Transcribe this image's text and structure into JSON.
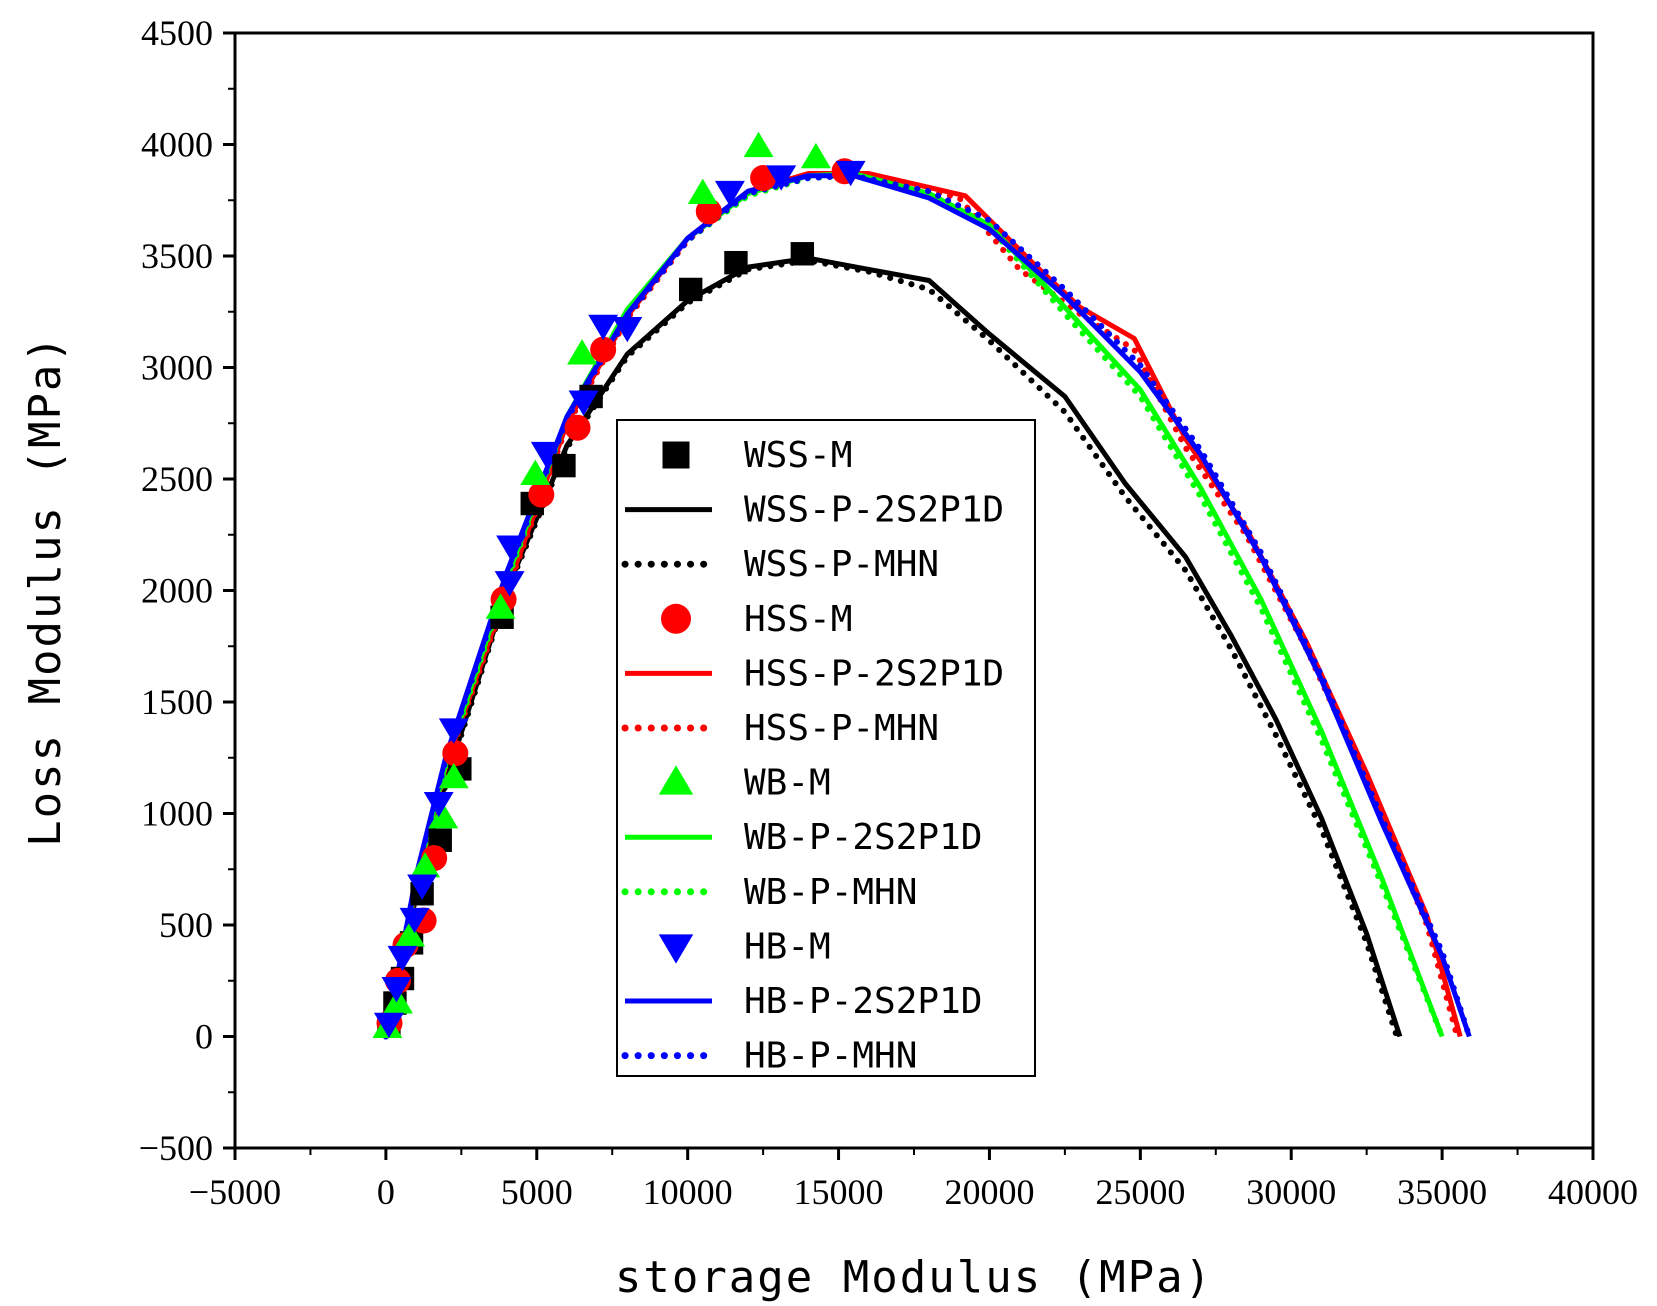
{
  "chart_data": {
    "type": "scatter",
    "title": "",
    "xlabel": "storage Modulus (MPa)",
    "ylabel": "Loss Modulus (MPa)",
    "xlim": [
      -5000,
      40000
    ],
    "ylim": [
      -500,
      4500
    ],
    "xticks": [
      -5000,
      0,
      5000,
      10000,
      15000,
      20000,
      25000,
      30000,
      35000,
      40000
    ],
    "xtick_labels": [
      "−5000",
      "0",
      "5000",
      "10000",
      "15000",
      "20000",
      "25000",
      "30000",
      "35000",
      "40000"
    ],
    "yticks": [
      -500,
      0,
      500,
      1000,
      1500,
      2000,
      2500,
      3000,
      3500,
      4000,
      4500
    ],
    "ytick_labels": [
      "−500",
      "0",
      "500",
      "1000",
      "1500",
      "2000",
      "2500",
      "3000",
      "3500",
      "4000",
      "4500"
    ],
    "grid": false,
    "legend_position": "center",
    "series": [
      {
        "name": "WSS-M",
        "kind": "marker",
        "marker": "square",
        "color": "#000000",
        "points": [
          [
            100,
            50
          ],
          [
            300,
            150
          ],
          [
            550,
            260
          ],
          [
            850,
            420
          ],
          [
            1200,
            640
          ],
          [
            1800,
            880
          ],
          [
            2450,
            1200
          ],
          [
            3850,
            1880
          ],
          [
            4850,
            2390
          ],
          [
            5900,
            2560
          ],
          [
            6800,
            2870
          ],
          [
            10100,
            3350
          ],
          [
            11600,
            3470
          ],
          [
            13800,
            3510
          ]
        ]
      },
      {
        "name": "WSS-P-2S2P1D",
        "kind": "line",
        "dash": "solid",
        "color": "#000000",
        "points": [
          [
            0,
            0
          ],
          [
            1000,
            650
          ],
          [
            2000,
            1150
          ],
          [
            4000,
            2000
          ],
          [
            6000,
            2650
          ],
          [
            8000,
            3060
          ],
          [
            10000,
            3300
          ],
          [
            12000,
            3450
          ],
          [
            14000,
            3490
          ],
          [
            16000,
            3440
          ],
          [
            18000,
            3390
          ],
          [
            20000,
            3150
          ],
          [
            22500,
            2870
          ],
          [
            24500,
            2480
          ],
          [
            26500,
            2150
          ],
          [
            28000,
            1800
          ],
          [
            29500,
            1420
          ],
          [
            31000,
            980
          ],
          [
            32500,
            460
          ],
          [
            33600,
            0
          ]
        ]
      },
      {
        "name": "WSS-P-MHN",
        "kind": "line",
        "dash": "dotted",
        "color": "#000000",
        "points": [
          [
            0,
            0
          ],
          [
            1000,
            640
          ],
          [
            2000,
            1140
          ],
          [
            4000,
            1990
          ],
          [
            6000,
            2640
          ],
          [
            8000,
            3050
          ],
          [
            10000,
            3290
          ],
          [
            12000,
            3440
          ],
          [
            14000,
            3480
          ],
          [
            16000,
            3430
          ],
          [
            18000,
            3350
          ],
          [
            20000,
            3120
          ],
          [
            22500,
            2800
          ],
          [
            24500,
            2420
          ],
          [
            26500,
            2090
          ],
          [
            28000,
            1740
          ],
          [
            29500,
            1350
          ],
          [
            31000,
            930
          ],
          [
            32500,
            420
          ],
          [
            33500,
            0
          ]
        ]
      },
      {
        "name": "HSS-M",
        "kind": "marker",
        "marker": "circle",
        "color": "#ff0000",
        "points": [
          [
            120,
            60
          ],
          [
            400,
            250
          ],
          [
            650,
            410
          ],
          [
            1250,
            520
          ],
          [
            1600,
            800
          ],
          [
            2300,
            1270
          ],
          [
            3900,
            1960
          ],
          [
            5150,
            2430
          ],
          [
            6350,
            2730
          ],
          [
            7200,
            3080
          ],
          [
            10700,
            3700
          ],
          [
            12500,
            3850
          ],
          [
            15200,
            3880
          ]
        ]
      },
      {
        "name": "HSS-P-2S2P1D",
        "kind": "line",
        "dash": "solid",
        "color": "#ff0000",
        "points": [
          [
            0,
            0
          ],
          [
            1000,
            680
          ],
          [
            2000,
            1220
          ],
          [
            4000,
            2000
          ],
          [
            6000,
            2750
          ],
          [
            8000,
            3230
          ],
          [
            10000,
            3580
          ],
          [
            12000,
            3790
          ],
          [
            14000,
            3870
          ],
          [
            16000,
            3870
          ],
          [
            19200,
            3770
          ],
          [
            21500,
            3460
          ],
          [
            23000,
            3270
          ],
          [
            24800,
            3130
          ],
          [
            26500,
            2680
          ],
          [
            28500,
            2280
          ],
          [
            30500,
            1770
          ],
          [
            32500,
            1180
          ],
          [
            34500,
            540
          ],
          [
            35600,
            0
          ]
        ]
      },
      {
        "name": "HSS-P-MHN",
        "kind": "line",
        "dash": "dotted",
        "color": "#ff0000",
        "points": [
          [
            0,
            0
          ],
          [
            1000,
            670
          ],
          [
            2000,
            1210
          ],
          [
            4000,
            1990
          ],
          [
            6000,
            2740
          ],
          [
            8000,
            3220
          ],
          [
            10000,
            3570
          ],
          [
            12000,
            3780
          ],
          [
            14000,
            3860
          ],
          [
            16000,
            3860
          ],
          [
            19000,
            3760
          ],
          [
            21000,
            3440
          ],
          [
            23000,
            3240
          ],
          [
            24800,
            3080
          ],
          [
            26500,
            2640
          ],
          [
            28500,
            2250
          ],
          [
            30500,
            1740
          ],
          [
            32500,
            1150
          ],
          [
            34500,
            500
          ],
          [
            35500,
            0
          ]
        ]
      },
      {
        "name": "WB-M",
        "kind": "marker",
        "marker": "triangle-up",
        "color": "#00ff00",
        "points": [
          [
            50,
            40
          ],
          [
            400,
            150
          ],
          [
            800,
            450
          ],
          [
            1300,
            760
          ],
          [
            1900,
            980
          ],
          [
            2250,
            1160
          ],
          [
            3800,
            1920
          ],
          [
            4950,
            2520
          ],
          [
            6500,
            3060
          ],
          [
            10500,
            3780
          ],
          [
            12350,
            3990
          ],
          [
            14250,
            3940
          ]
        ]
      },
      {
        "name": "WB-P-2S2P1D",
        "kind": "line",
        "dash": "solid",
        "color": "#00ff00",
        "points": [
          [
            0,
            0
          ],
          [
            1000,
            700
          ],
          [
            2000,
            1230
          ],
          [
            4000,
            2050
          ],
          [
            6000,
            2780
          ],
          [
            8000,
            3260
          ],
          [
            10000,
            3580
          ],
          [
            12000,
            3780
          ],
          [
            14000,
            3860
          ],
          [
            15500,
            3870
          ],
          [
            18000,
            3780
          ],
          [
            20000,
            3640
          ],
          [
            22500,
            3270
          ],
          [
            25000,
            2900
          ],
          [
            27000,
            2460
          ],
          [
            29000,
            1960
          ],
          [
            31000,
            1370
          ],
          [
            33000,
            710
          ],
          [
            35000,
            0
          ]
        ]
      },
      {
        "name": "WB-P-MHN",
        "kind": "line",
        "dash": "dotted",
        "color": "#00ff00",
        "points": [
          [
            0,
            0
          ],
          [
            1000,
            690
          ],
          [
            2000,
            1220
          ],
          [
            4000,
            2040
          ],
          [
            6000,
            2770
          ],
          [
            8000,
            3250
          ],
          [
            10000,
            3570
          ],
          [
            12000,
            3770
          ],
          [
            14000,
            3850
          ],
          [
            15500,
            3860
          ],
          [
            18000,
            3770
          ],
          [
            20000,
            3630
          ],
          [
            22500,
            3240
          ],
          [
            25000,
            2870
          ],
          [
            27000,
            2420
          ],
          [
            29000,
            1920
          ],
          [
            31000,
            1330
          ],
          [
            33000,
            680
          ],
          [
            35000,
            0
          ]
        ]
      },
      {
        "name": "HB-M",
        "kind": "marker",
        "marker": "triangle-down",
        "color": "#0000ff",
        "points": [
          [
            100,
            60
          ],
          [
            350,
            220
          ],
          [
            550,
            360
          ],
          [
            950,
            530
          ],
          [
            1200,
            680
          ],
          [
            1750,
            1050
          ],
          [
            2250,
            1380
          ],
          [
            4100,
            2040
          ],
          [
            4150,
            2200
          ],
          [
            5300,
            2620
          ],
          [
            6550,
            2850
          ],
          [
            7200,
            3190
          ],
          [
            8000,
            3180
          ],
          [
            11400,
            3790
          ],
          [
            13100,
            3860
          ],
          [
            15400,
            3880
          ]
        ]
      },
      {
        "name": "HB-P-2S2P1D",
        "kind": "line",
        "dash": "solid",
        "color": "#0000ff",
        "points": [
          [
            0,
            0
          ],
          [
            1000,
            720
          ],
          [
            2000,
            1260
          ],
          [
            4000,
            2080
          ],
          [
            6000,
            2780
          ],
          [
            8000,
            3240
          ],
          [
            10000,
            3580
          ],
          [
            12000,
            3790
          ],
          [
            14000,
            3860
          ],
          [
            15500,
            3860
          ],
          [
            18000,
            3760
          ],
          [
            20000,
            3620
          ],
          [
            22500,
            3320
          ],
          [
            25000,
            2980
          ],
          [
            27000,
            2610
          ],
          [
            29000,
            2150
          ],
          [
            31000,
            1600
          ],
          [
            33000,
            960
          ],
          [
            35000,
            360
          ],
          [
            35900,
            0
          ]
        ]
      },
      {
        "name": "HB-P-MHN",
        "kind": "line",
        "dash": "dotted",
        "color": "#0000ff",
        "points": [
          [
            0,
            0
          ],
          [
            1000,
            710
          ],
          [
            2000,
            1250
          ],
          [
            4000,
            2070
          ],
          [
            6000,
            2770
          ],
          [
            8000,
            3230
          ],
          [
            10000,
            3570
          ],
          [
            12000,
            3780
          ],
          [
            14000,
            3850
          ],
          [
            15500,
            3860
          ],
          [
            18000,
            3790
          ],
          [
            20000,
            3660
          ],
          [
            22500,
            3350
          ],
          [
            25000,
            3010
          ],
          [
            27000,
            2630
          ],
          [
            29000,
            2170
          ],
          [
            31000,
            1620
          ],
          [
            33000,
            980
          ],
          [
            35000,
            380
          ],
          [
            35900,
            0
          ]
        ]
      }
    ]
  }
}
